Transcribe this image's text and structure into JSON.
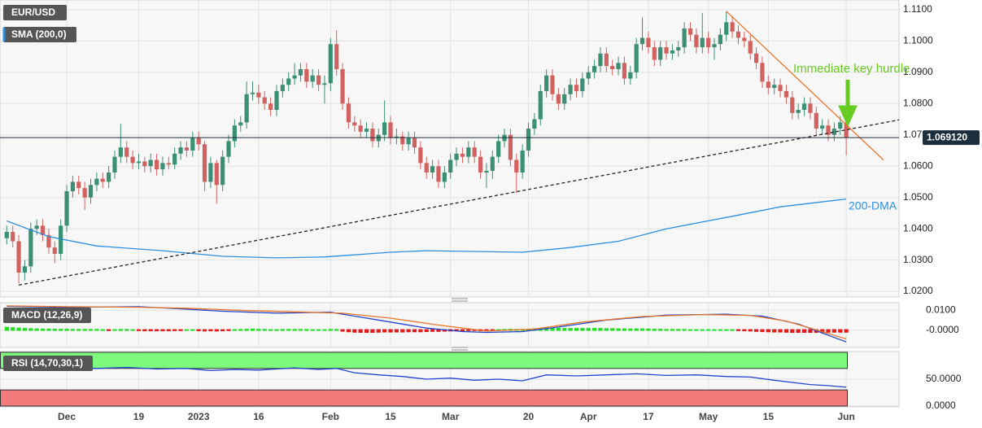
{
  "chart_data": [
    {
      "type": "candlestick",
      "title": "EUR/USD",
      "indicator": "SMA (200,0)",
      "xlim": [
        -1.13,
        148.8
      ],
      "ylim": [
        1.0182,
        1.1131
      ],
      "grid": true,
      "xticks": [
        {
          "value": 10,
          "label": "Dec"
        },
        {
          "value": 22,
          "label": "19"
        },
        {
          "value": 32,
          "label": "2023"
        },
        {
          "value": 42,
          "label": "16"
        },
        {
          "value": 54,
          "label": "Feb"
        },
        {
          "value": 64,
          "label": "15"
        },
        {
          "value": 74,
          "label": "Mar"
        },
        {
          "value": 87,
          "label": "20"
        },
        {
          "value": 97,
          "label": "Apr"
        },
        {
          "value": 107,
          "label": "17"
        },
        {
          "value": 117,
          "label": "May"
        },
        {
          "value": 127,
          "label": "15"
        },
        {
          "value": 140,
          "label": "Jun"
        }
      ],
      "yticks": [
        {
          "value": 1.11,
          "label": "1.1100"
        },
        {
          "value": 1.1,
          "label": "1.1000"
        },
        {
          "value": 1.09,
          "label": "1.0900"
        },
        {
          "value": 1.08,
          "label": "1.0800"
        },
        {
          "value": 1.07,
          "label": "1.0700"
        },
        {
          "value": 1.06,
          "label": "1.0600"
        },
        {
          "value": 1.05,
          "label": "1.0500"
        },
        {
          "value": 1.04,
          "label": "1.0400"
        },
        {
          "value": 1.03,
          "label": "1.0300"
        },
        {
          "value": 1.02,
          "label": "1.0200"
        }
      ],
      "up_color": "#3b8f73",
      "down_color": "#d2625f",
      "open": [
        1.037,
        1.039,
        1.036,
        1.026,
        1.028,
        1.04,
        1.041,
        1.038,
        1.034,
        1.032,
        1.041,
        1.052,
        1.055,
        1.053,
        1.05,
        1.054,
        1.056,
        1.055,
        1.058,
        1.063,
        1.066,
        1.063,
        1.061,
        1.0615,
        1.06,
        1.062,
        1.059,
        1.061,
        1.0605,
        1.064,
        1.066,
        1.065,
        1.069,
        1.067,
        1.055,
        1.061,
        1.054,
        1.063,
        1.068,
        1.073,
        1.074,
        1.083,
        1.0835,
        1.082,
        1.08,
        1.078,
        1.084,
        1.086,
        1.088,
        1.089,
        1.091,
        1.087,
        1.089,
        1.086,
        1.0865,
        1.099,
        1.091,
        1.08,
        1.074,
        1.073,
        1.071,
        1.072,
        1.068,
        1.07,
        1.074,
        1.069,
        1.0695,
        1.067,
        1.069,
        1.066,
        1.061,
        1.058,
        1.06,
        1.055,
        1.058,
        1.062,
        1.064,
        1.063,
        1.066,
        1.063,
        1.058,
        1.0585,
        1.063,
        1.068,
        1.07,
        1.062,
        1.058,
        1.065,
        1.072,
        1.075,
        1.084,
        1.089,
        1.083,
        1.08,
        1.083,
        1.086,
        1.084,
        1.088,
        1.09,
        1.092,
        1.096,
        1.092,
        1.091,
        1.093,
        1.088,
        1.09,
        1.099,
        1.101,
        1.098,
        1.094,
        1.098,
        1.096,
        1.097,
        1.098,
        1.104,
        1.102,
        1.098,
        1.101,
        1.098,
        1.099,
        1.102,
        1.106,
        1.103,
        1.101,
        1.1,
        1.096,
        1.093,
        1.087,
        1.085,
        1.086,
        1.084,
        1.082,
        1.077,
        1.078,
        1.08,
        1.077,
        1.072,
        1.073,
        1.07,
        1.072,
        1.074
      ],
      "high": [
        1.041,
        1.041,
        1.038,
        1.03,
        1.042,
        1.043,
        1.043,
        1.04,
        1.036,
        1.043,
        1.054,
        1.057,
        1.057,
        1.055,
        1.056,
        1.058,
        1.058,
        1.06,
        1.065,
        1.0735,
        1.068,
        1.065,
        1.064,
        1.063,
        1.064,
        1.064,
        1.063,
        1.063,
        1.066,
        1.068,
        1.068,
        1.071,
        1.071,
        1.068,
        1.063,
        1.062,
        1.065,
        1.07,
        1.075,
        1.076,
        1.087,
        1.087,
        1.086,
        1.084,
        1.082,
        1.086,
        1.088,
        1.09,
        1.093,
        1.093,
        1.093,
        1.091,
        1.091,
        1.089,
        1.101,
        1.1035,
        1.093,
        1.082,
        1.076,
        1.075,
        1.074,
        1.074,
        1.072,
        1.081,
        1.076,
        1.072,
        1.071,
        1.071,
        1.071,
        1.068,
        1.063,
        1.062,
        1.062,
        1.06,
        1.064,
        1.066,
        1.066,
        1.068,
        1.068,
        1.065,
        1.061,
        1.065,
        1.07,
        1.072,
        1.072,
        1.064,
        1.067,
        1.074,
        1.077,
        1.086,
        1.091,
        1.091,
        1.085,
        1.085,
        1.088,
        1.088,
        1.09,
        1.092,
        1.094,
        1.098,
        1.098,
        1.094,
        1.095,
        1.095,
        1.092,
        1.101,
        1.1075,
        1.103,
        1.1,
        1.1,
        1.1,
        1.099,
        1.1,
        1.106,
        1.106,
        1.104,
        1.109,
        1.103,
        1.101,
        1.104,
        1.1095,
        1.108,
        1.105,
        1.103,
        1.102,
        1.098,
        1.095,
        1.089,
        1.088,
        1.088,
        1.086,
        1.084,
        1.08,
        1.082,
        1.082,
        1.079,
        1.075,
        1.075,
        1.074,
        1.076,
        1.075
      ],
      "low": [
        1.035,
        1.034,
        1.0225,
        1.0235,
        1.026,
        1.038,
        1.036,
        1.032,
        1.029,
        1.03,
        1.039,
        1.05,
        1.051,
        1.046,
        1.048,
        1.052,
        1.053,
        1.053,
        1.056,
        1.061,
        1.061,
        1.059,
        1.059,
        1.058,
        1.058,
        1.057,
        1.057,
        1.059,
        1.059,
        1.062,
        1.063,
        1.063,
        1.065,
        1.052,
        1.053,
        1.048,
        1.052,
        1.061,
        1.066,
        1.071,
        1.072,
        1.081,
        1.08,
        1.078,
        1.076,
        1.076,
        1.082,
        1.084,
        1.086,
        1.087,
        1.085,
        1.085,
        1.084,
        1.08,
        1.084,
        1.089,
        1.078,
        1.072,
        1.071,
        1.069,
        1.069,
        1.066,
        1.066,
        1.068,
        1.067,
        1.067,
        1.065,
        1.065,
        1.064,
        1.059,
        1.056,
        1.056,
        1.053,
        1.053,
        1.056,
        1.06,
        1.061,
        1.061,
        1.061,
        1.056,
        1.053,
        1.056,
        1.061,
        1.066,
        1.06,
        1.0515,
        1.056,
        1.063,
        1.07,
        1.073,
        1.082,
        1.081,
        1.078,
        1.078,
        1.081,
        1.082,
        1.082,
        1.086,
        1.088,
        1.09,
        1.09,
        1.089,
        1.089,
        1.086,
        1.086,
        1.088,
        1.097,
        1.096,
        1.092,
        1.092,
        1.094,
        1.094,
        1.095,
        1.096,
        1.1,
        1.096,
        1.096,
        1.096,
        1.094,
        1.097,
        1.1,
        1.101,
        1.099,
        1.098,
        1.094,
        1.091,
        1.085,
        1.083,
        1.083,
        1.082,
        1.08,
        1.075,
        1.075,
        1.076,
        1.075,
        1.07,
        1.07,
        1.068,
        1.068,
        1.07,
        1.0635
      ],
      "close": [
        1.039,
        1.036,
        1.026,
        1.028,
        1.04,
        1.041,
        1.038,
        1.034,
        1.032,
        1.041,
        1.052,
        1.055,
        1.053,
        1.05,
        1.054,
        1.056,
        1.055,
        1.058,
        1.063,
        1.066,
        1.063,
        1.061,
        1.0615,
        1.06,
        1.062,
        1.059,
        1.061,
        1.0605,
        1.064,
        1.066,
        1.065,
        1.069,
        1.067,
        1.055,
        1.061,
        1.054,
        1.063,
        1.068,
        1.073,
        1.074,
        1.083,
        1.0835,
        1.082,
        1.08,
        1.078,
        1.084,
        1.086,
        1.088,
        1.089,
        1.091,
        1.087,
        1.089,
        1.086,
        1.0865,
        1.099,
        1.091,
        1.08,
        1.074,
        1.073,
        1.071,
        1.072,
        1.068,
        1.07,
        1.074,
        1.069,
        1.0695,
        1.067,
        1.069,
        1.066,
        1.061,
        1.058,
        1.06,
        1.055,
        1.058,
        1.062,
        1.064,
        1.063,
        1.066,
        1.063,
        1.058,
        1.0585,
        1.063,
        1.068,
        1.07,
        1.062,
        1.058,
        1.065,
        1.072,
        1.075,
        1.084,
        1.089,
        1.083,
        1.08,
        1.083,
        1.086,
        1.084,
        1.088,
        1.09,
        1.092,
        1.096,
        1.092,
        1.091,
        1.093,
        1.088,
        1.09,
        1.099,
        1.101,
        1.098,
        1.094,
        1.098,
        1.096,
        1.097,
        1.098,
        1.104,
        1.102,
        1.098,
        1.101,
        1.098,
        1.099,
        1.102,
        1.106,
        1.103,
        1.101,
        1.1,
        1.096,
        1.093,
        1.087,
        1.085,
        1.086,
        1.084,
        1.082,
        1.077,
        1.078,
        1.08,
        1.077,
        1.072,
        1.073,
        1.07,
        1.072,
        1.074,
        1.0691
      ],
      "sma": {
        "name": "200-DMA",
        "color": "#2a8fe0",
        "x": [
          0,
          7,
          15,
          26,
          36,
          45,
          53,
          64,
          70,
          86,
          94,
          102,
          110,
          121,
          129,
          140
        ],
        "values": [
          1.0425,
          1.0375,
          1.0345,
          1.033,
          1.0312,
          1.0307,
          1.031,
          1.0325,
          1.033,
          1.0325,
          1.034,
          1.036,
          1.04,
          1.044,
          1.047,
          1.0495
        ]
      },
      "trendlines": [
        {
          "color": "#222222",
          "dashed": true,
          "x": [
            2,
            150.8
          ],
          "values": [
            1.022,
            1.0755
          ]
        },
        {
          "color": "#e8762c",
          "dashed": false,
          "x": [
            120,
            146.2
          ],
          "values": [
            1.1095,
            1.062
          ]
        }
      ],
      "last_price": {
        "value": 1.06912,
        "label": "1.069120"
      },
      "annotation": {
        "text": "Immediate key hurdle",
        "color": "#66cc22"
      }
    },
    {
      "type": "macd",
      "title": "MACD (12,26,9)",
      "ylim": [
        -0.0088,
        0.0138
      ],
      "yticks": [
        {
          "value": 0.01,
          "label": "0.0100"
        },
        {
          "value": 0,
          "label": "-0.0000"
        }
      ],
      "histogram": [
        0.0012,
        0.001,
        0.0008,
        0.0006,
        0.0005,
        0.0004,
        0.0003,
        0.0003,
        0.0002,
        0.0002,
        0.0002,
        0.0001,
        0.0001,
        0.0001,
        0.0001,
        0.0001,
        0,
        -0.0001,
        0,
        0.0001,
        0.0001,
        0,
        -0.0001,
        -0.0002,
        -0.0002,
        -0.0002,
        -0.0002,
        -0.0002,
        -0.0001,
        -0.0001,
        0,
        0,
        -0.0002,
        -0.0003,
        -0.0002,
        -0.0003,
        -0.0002,
        -0.0001,
        0,
        0.0001,
        0.0002,
        0.0003,
        0.0002,
        0.0001,
        0,
        0,
        0.0001,
        0.0001,
        0.0001,
        0.0001,
        0.0001,
        0,
        0,
        0,
        0.0001,
        0.0001,
        -0.0004,
        -0.0007,
        -0.0009,
        -0.001,
        -0.001,
        -0.001,
        -0.0009,
        -0.0008,
        -0.0008,
        -0.0008,
        -0.0008,
        -0.0007,
        -0.0007,
        -0.0007,
        -0.0006,
        -0.0005,
        -0.0005,
        -0.0004,
        -0.0003,
        -0.0002,
        -0.0002,
        -0.0001,
        -0.0001,
        -0.0002,
        -0.0002,
        -0.0001,
        0,
        0.0001,
        0.0002,
        0.0001,
        0.0001,
        0.0002,
        0.0004,
        0.0006,
        0.0008,
        0.0008,
        0.0007,
        0.0006,
        0.0006,
        0.0006,
        0.0006,
        0.0006,
        0.0006,
        0.0006,
        0.0005,
        0.0005,
        0.0004,
        0.0004,
        0.0003,
        0.0004,
        0.0004,
        0.0003,
        0.0002,
        0.0002,
        0.0001,
        0.0001,
        0.0001,
        0.0001,
        0,
        0,
        0,
        0,
        0,
        0,
        0,
        0,
        -0.0001,
        -0.0002,
        -0.0003,
        -0.0005,
        -0.0006,
        -0.0007,
        -0.0008,
        -0.0008,
        -0.0009,
        -0.001,
        -0.001,
        -0.001,
        -0.001,
        -0.001,
        -0.001,
        -0.0009,
        -0.0009,
        -0.0009,
        -0.0009
      ],
      "pos_color": "#22dd22",
      "neg_color": "#e01818",
      "series": [
        {
          "color": "#2244cc",
          "x": [
            0,
            10,
            22,
            30,
            36,
            45,
            50,
            54,
            58,
            64,
            70,
            76,
            80,
            86,
            92,
            100,
            110,
            120,
            126,
            132,
            140
          ],
          "values": [
            0.012,
            0.0115,
            0.0118,
            0.0105,
            0.0095,
            0.0085,
            0.0088,
            0.009,
            0.007,
            0.004,
            0.001,
            -0.0008,
            -0.0012,
            -0.0008,
            0.0015,
            0.005,
            0.0075,
            0.008,
            0.007,
            0.003,
            -0.006
          ]
        },
        {
          "color": "#e8762c",
          "x": [
            0,
            10,
            22,
            30,
            40,
            50,
            56,
            64,
            72,
            80,
            88,
            96,
            106,
            116,
            124,
            130,
            134,
            140
          ],
          "values": [
            0.0122,
            0.0118,
            0.0115,
            0.011,
            0.0098,
            0.009,
            0.0085,
            0.006,
            0.0025,
            -0.0005,
            0.0005,
            0.004,
            0.0068,
            0.0078,
            0.0074,
            0.0045,
            0.001,
            -0.0045
          ]
        }
      ]
    },
    {
      "type": "rsi",
      "title": "RSI (14,70,30,1)",
      "ylim": [
        -1.5,
        101.5
      ],
      "yticks": [
        {
          "value": 50,
          "label": "50.0000"
        },
        {
          "value": 0,
          "label": "0.0000"
        }
      ],
      "overbought": [
        70,
        100
      ],
      "oversold": [
        0,
        30
      ],
      "overbought_color": "#7dfa7d",
      "oversold_color": "#f47b7b",
      "series": [
        {
          "color": "#2244cc",
          "x": [
            0,
            5,
            10,
            15,
            20,
            25,
            30,
            34,
            38,
            42,
            48,
            52,
            55,
            58,
            62,
            66,
            70,
            74,
            78,
            82,
            86,
            90,
            95,
            100,
            105,
            110,
            115,
            120,
            124,
            128,
            131,
            134,
            137,
            140
          ],
          "values": [
            75,
            72,
            73,
            70,
            72,
            69,
            70,
            66,
            68,
            67,
            71,
            68,
            70,
            62,
            58,
            55,
            50,
            52,
            48,
            50,
            47,
            58,
            56,
            58,
            60,
            57,
            58,
            55,
            54,
            48,
            44,
            40,
            38,
            35
          ]
        }
      ]
    }
  ]
}
